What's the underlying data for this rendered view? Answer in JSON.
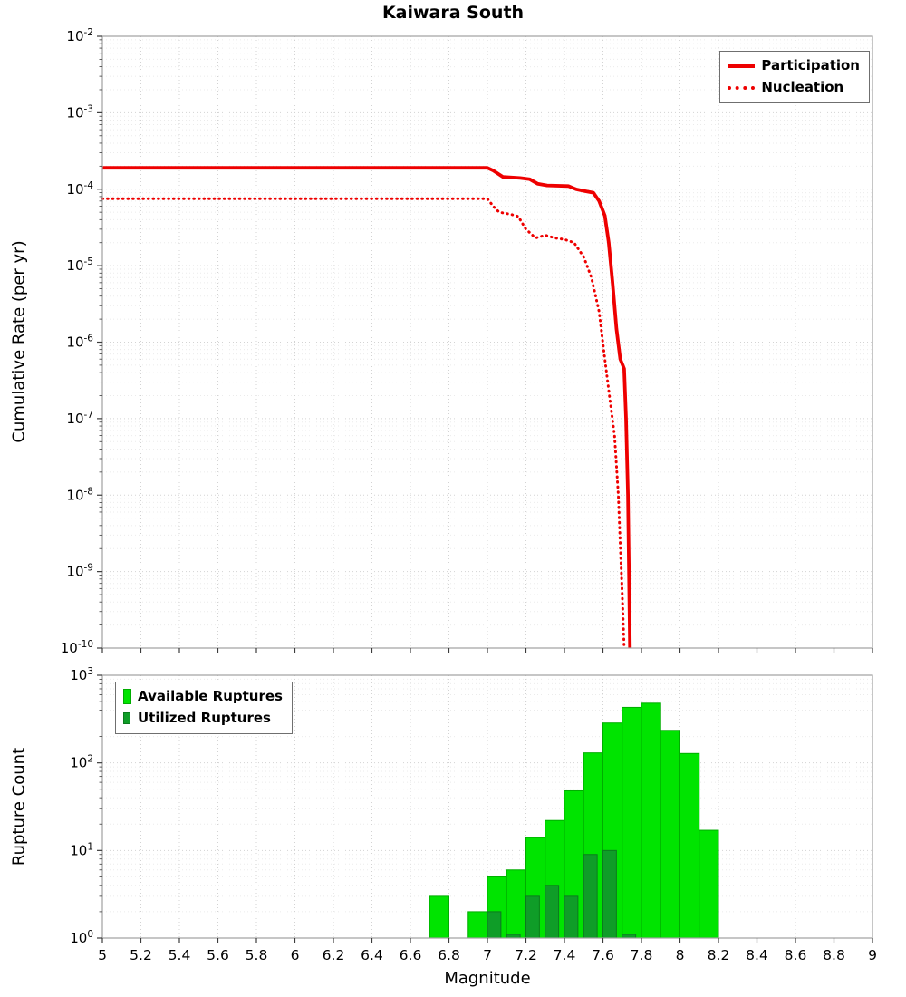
{
  "title": "Kaiwara South",
  "axes": {
    "x_label": "Magnitude",
    "top_y_label": "Cumulative Rate (per yr)",
    "bottom_y_label": "Rupture Count"
  },
  "legends": {
    "top": [
      {
        "label": "Participation",
        "style": "solid"
      },
      {
        "label": "Nucleation",
        "style": "dotted"
      }
    ],
    "bottom": [
      {
        "label": "Available Ruptures"
      },
      {
        "label": "Utilized Ruptures"
      }
    ]
  },
  "colors": {
    "line_red": "#ee0000",
    "available_green": "#00e400",
    "available_edge": "#00ad00",
    "utilized_green": "#0f9d28",
    "utilized_edge": "#0b7a1d",
    "grid_major": "#d3d3d3",
    "grid_minor": "#ebebeb",
    "frame": "#a0a0a0",
    "tick": "#3c3c3c"
  },
  "chart_data": [
    {
      "type": "line",
      "title": "Kaiwara South",
      "xlabel": "Magnitude",
      "ylabel": "Cumulative Rate (per yr)",
      "xlim": [
        5,
        9
      ],
      "ylog": true,
      "ylim": [
        1e-10,
        0.01
      ],
      "y_tick_exponents": [
        -2,
        -3,
        -4,
        -5,
        -6,
        -7,
        -8,
        -9,
        -10
      ],
      "grid": true,
      "legend_position": "top-right",
      "series": [
        {
          "name": "Participation",
          "line": "solid",
          "width": 3.8,
          "points": [
            [
              5.0,
              0.00019
            ],
            [
              7.0,
              0.00019
            ],
            [
              7.03,
              0.000175
            ],
            [
              7.08,
              0.000145
            ],
            [
              7.17,
              0.00014
            ],
            [
              7.22,
              0.000135
            ],
            [
              7.26,
              0.000118
            ],
            [
              7.31,
              0.000112
            ],
            [
              7.42,
              0.00011
            ],
            [
              7.46,
              0.0001
            ],
            [
              7.5,
              9.5e-05
            ],
            [
              7.55,
              9e-05
            ],
            [
              7.58,
              7e-05
            ],
            [
              7.61,
              4.5e-05
            ],
            [
              7.63,
              2e-05
            ],
            [
              7.65,
              6e-06
            ],
            [
              7.67,
              1.5e-06
            ],
            [
              7.69,
              6e-07
            ],
            [
              7.71,
              4.5e-07
            ],
            [
              7.72,
              1e-07
            ],
            [
              7.73,
              1e-08
            ],
            [
              7.74,
              1e-10
            ]
          ]
        },
        {
          "name": "Nucleation",
          "line": "dotted",
          "width": 3,
          "points": [
            [
              5.0,
              7.5e-05
            ],
            [
              7.0,
              7.5e-05
            ],
            [
              7.03,
              6e-05
            ],
            [
              7.06,
              5e-05
            ],
            [
              7.12,
              4.7e-05
            ],
            [
              7.16,
              4.4e-05
            ],
            [
              7.2,
              3e-05
            ],
            [
              7.25,
              2.3e-05
            ],
            [
              7.3,
              2.5e-05
            ],
            [
              7.35,
              2.3e-05
            ],
            [
              7.4,
              2.2e-05
            ],
            [
              7.45,
              2e-05
            ],
            [
              7.5,
              1.3e-05
            ],
            [
              7.54,
              7e-06
            ],
            [
              7.58,
              2.5e-06
            ],
            [
              7.61,
              6e-07
            ],
            [
              7.64,
              1.5e-07
            ],
            [
              7.66,
              6e-08
            ],
            [
              7.68,
              1e-08
            ],
            [
              7.7,
              5e-10
            ],
            [
              7.71,
              1e-10
            ]
          ]
        }
      ]
    },
    {
      "type": "bar",
      "xlabel": "Magnitude",
      "ylabel": "Rupture Count",
      "xlim": [
        5,
        9
      ],
      "ylog": true,
      "ylim": [
        1,
        1000
      ],
      "y_tick_exponents": [
        0,
        1,
        2,
        3
      ],
      "x_ticks": [
        5,
        5.2,
        5.4,
        5.6,
        5.8,
        6,
        6.2,
        6.4,
        6.6,
        6.8,
        7,
        7.2,
        7.4,
        7.6,
        7.8,
        8,
        8.2,
        8.4,
        8.6,
        8.8,
        9
      ],
      "x_tick_labels": [
        "5",
        "5.2",
        "5.4",
        "5.6",
        "5.8",
        "6",
        "6.2",
        "6.4",
        "6.6",
        "6.8",
        "7",
        "7.2",
        "7.4",
        "7.6",
        "7.8",
        "8",
        "8.2",
        "8.4",
        "8.6",
        "8.8",
        "9"
      ],
      "bin_width": 0.1,
      "grid": true,
      "legend_position": "top-left",
      "series": [
        {
          "name": "Available Ruptures",
          "bars": [
            [
              6.75,
              3
            ],
            [
              6.95,
              2
            ],
            [
              7.05,
              5
            ],
            [
              7.15,
              6
            ],
            [
              7.25,
              14
            ],
            [
              7.35,
              22
            ],
            [
              7.45,
              48
            ],
            [
              7.55,
              130
            ],
            [
              7.65,
              285
            ],
            [
              7.75,
              430
            ],
            [
              7.85,
              480
            ],
            [
              7.95,
              235
            ],
            [
              8.05,
              128
            ],
            [
              8.15,
              17
            ]
          ]
        },
        {
          "name": "Utilized Ruptures",
          "bars": [
            [
              7.05,
              2
            ],
            [
              7.15,
              1
            ],
            [
              7.25,
              3
            ],
            [
              7.35,
              4
            ],
            [
              7.45,
              3
            ],
            [
              7.55,
              9
            ],
            [
              7.65,
              10
            ],
            [
              7.75,
              1
            ]
          ]
        }
      ]
    }
  ]
}
